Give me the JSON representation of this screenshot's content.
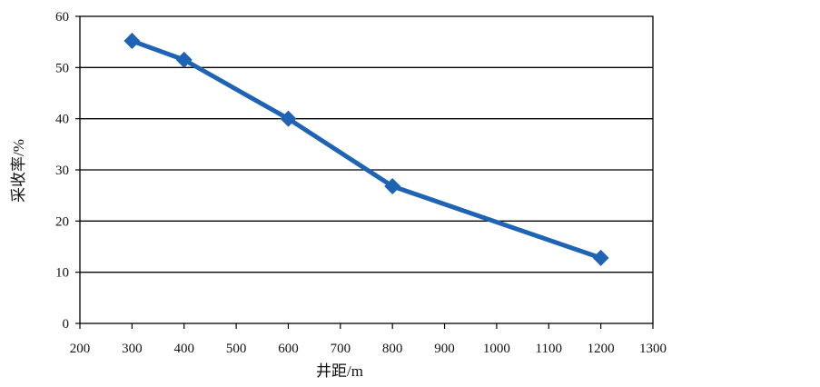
{
  "chart_data": {
    "type": "line",
    "title": "",
    "xlabel": "井距/m",
    "ylabel": "采收率/%",
    "xlim": [
      200,
      1300
    ],
    "ylim": [
      0,
      60
    ],
    "xticks": [
      200,
      300,
      400,
      500,
      600,
      700,
      800,
      900,
      1000,
      1100,
      1200,
      1300
    ],
    "yticks": [
      0,
      10,
      20,
      30,
      40,
      50,
      60
    ],
    "grid": "horizontal",
    "legend": "none",
    "series": [
      {
        "x": [
          300,
          400,
          600,
          800,
          1200
        ],
        "values": [
          55.2,
          51.5,
          40.0,
          26.8,
          12.8
        ],
        "color": "#1f63b5",
        "marker": "diamond"
      }
    ]
  }
}
